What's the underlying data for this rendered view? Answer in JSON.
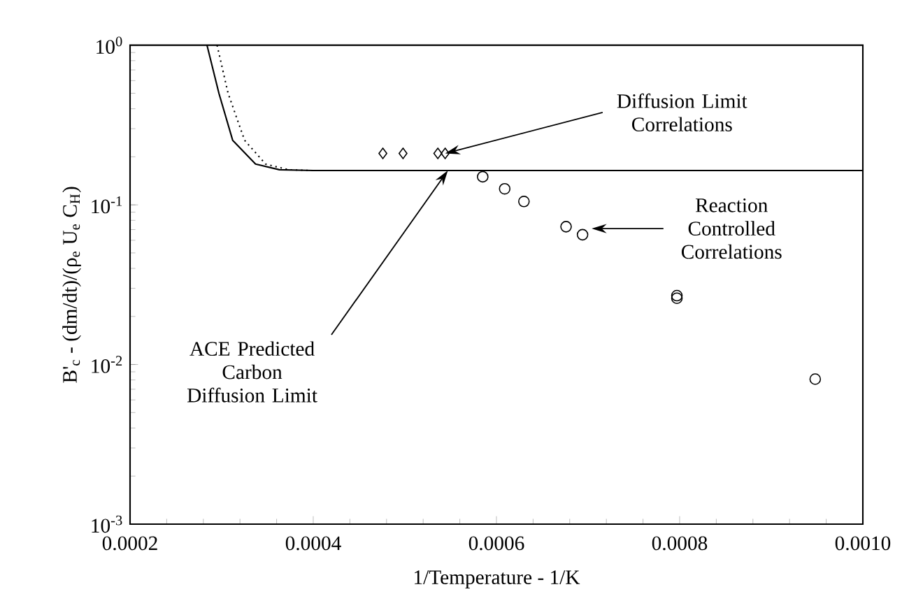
{
  "chart_data": {
    "type": "line",
    "xlabel": "1/Temperature - 1/K",
    "ylabel": "B'$_{c}$ - (dm/dt)/(ρ$_{e}$ U$_{e}$ C$_{H}$)",
    "log": "y",
    "xlim": [
      0.0002,
      0.001
    ],
    "ylim": [
      0.001,
      1
    ],
    "xticks": [
      {
        "value": 0.0002,
        "label": "0.0002"
      },
      {
        "value": 0.0004,
        "label": "0.0004"
      },
      {
        "value": 0.0006,
        "label": "0.0006"
      },
      {
        "value": 0.0008,
        "label": "0.0008"
      },
      {
        "value": 0.001,
        "label": "0.0010"
      }
    ],
    "yticks": [
      {
        "value": 0.001,
        "label": "10$^{-3}$"
      },
      {
        "value": 0.01,
        "label": "10$^{-2}$"
      },
      {
        "value": 0.1,
        "label": "10$^{-1}$"
      },
      {
        "value": 1,
        "label": "10$^{0}$"
      }
    ],
    "grid": false,
    "series": [
      {
        "line_style": "solid",
        "marker": "none",
        "color": "#000000",
        "x": [
          0.000284,
          0.000297,
          0.000312,
          0.000337,
          0.000363,
          0.0004,
          0.001
        ],
        "values": [
          1.0,
          0.5,
          0.254,
          0.18,
          0.166,
          0.164,
          0.164
        ]
      },
      {
        "line_style": "dotted",
        "marker": "none",
        "color": "#000000",
        "x": [
          0.000295,
          0.000307,
          0.000325,
          0.000348,
          0.000373,
          0.0004,
          0.001
        ],
        "values": [
          1.0,
          0.5,
          0.254,
          0.18,
          0.166,
          0.164,
          0.164
        ]
      },
      {
        "type": "scatter",
        "marker": "diamond",
        "color": "#000000",
        "x": [
          0.000476,
          0.000498,
          0.000536,
          0.000544
        ],
        "values": [
          0.21,
          0.21,
          0.21,
          0.21
        ]
      },
      {
        "type": "scatter",
        "marker": "circle",
        "color": "#000000",
        "x": [
          0.000585,
          0.000609,
          0.00063,
          0.000676,
          0.000694,
          0.000797,
          0.000797,
          0.000948
        ],
        "values": [
          0.15,
          0.126,
          0.105,
          0.073,
          0.065,
          0.027,
          0.026,
          0.0081
        ]
      }
    ],
    "annotations": [
      {
        "text": "Diffusion Limit Correlations",
        "x": 0.000544,
        "y": 0.21
      },
      {
        "text": "ACE Predicted Carbon Diffusion Limit",
        "x": 0.000547,
        "y": 0.164
      },
      {
        "text": "Reaction Controlled Correlations",
        "x": 0.000704,
        "y": 0.071
      }
    ]
  }
}
